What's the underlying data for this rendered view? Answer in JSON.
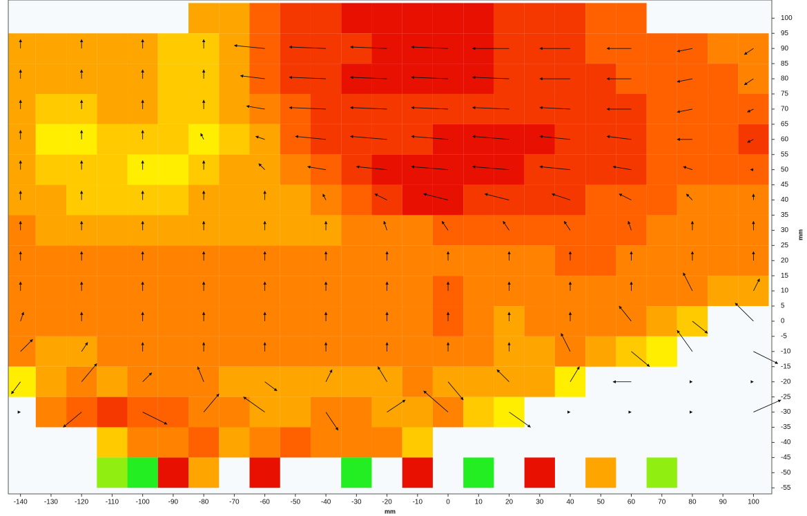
{
  "chart_data": {
    "type": "heatmap",
    "xlabel": "mm",
    "ylabel": "mm",
    "xlim": [
      -144,
      106
    ],
    "ylim": [
      -57,
      106
    ],
    "xticks": [
      -140,
      -130,
      -120,
      -110,
      -100,
      -90,
      -80,
      -70,
      -60,
      -50,
      -40,
      -30,
      -20,
      -10,
      0,
      10,
      20,
      30,
      40,
      50,
      60,
      70,
      80,
      90,
      100
    ],
    "yticks": [
      -55,
      -50,
      -45,
      -40,
      -35,
      -30,
      -25,
      -20,
      -15,
      -10,
      -5,
      0,
      5,
      10,
      15,
      20,
      25,
      30,
      35,
      40,
      45,
      50,
      55,
      60,
      65,
      70,
      75,
      80,
      85,
      90,
      95,
      100
    ],
    "colorscale": [
      "#22ee22",
      "#ffee00",
      "#ffa500",
      "#ff6000",
      "#e81000"
    ],
    "x": [
      -140,
      -130,
      -120,
      -110,
      -100,
      -90,
      -80,
      -70,
      -60,
      -50,
      -40,
      -30,
      -20,
      -10,
      0,
      10,
      20,
      30,
      40,
      50,
      60,
      70,
      80,
      90,
      100
    ],
    "y": [
      100,
      90,
      80,
      70,
      60,
      50,
      40,
      30,
      20,
      10,
      0,
      -10,
      -20,
      -30,
      -40,
      -50
    ],
    "values": [
      [
        null,
        null,
        null,
        null,
        null,
        null,
        5,
        5,
        7,
        8,
        8,
        9,
        9,
        9,
        9,
        9,
        8,
        8,
        8,
        7,
        7,
        null,
        null,
        null,
        null
      ],
      [
        5,
        5,
        5,
        5,
        5,
        4,
        4,
        5,
        7,
        8,
        8,
        8,
        9,
        9,
        9,
        9,
        8,
        8,
        8,
        7,
        7,
        7,
        7,
        6,
        6
      ],
      [
        5,
        5,
        5,
        5,
        5,
        4,
        4,
        5,
        7,
        8,
        8,
        9,
        9,
        9,
        9,
        9,
        8,
        8,
        8,
        8,
        7,
        7,
        7,
        7,
        6
      ],
      [
        5,
        4,
        4,
        5,
        5,
        4,
        4,
        5,
        6,
        7,
        8,
        8,
        8,
        8,
        8,
        8,
        8,
        8,
        8,
        8,
        8,
        7,
        7,
        7,
        7
      ],
      [
        5,
        3,
        3,
        4,
        4,
        4,
        3,
        4,
        5,
        7,
        8,
        8,
        8,
        8,
        9,
        9,
        9,
        9,
        8,
        8,
        8,
        7,
        7,
        7,
        8
      ],
      [
        5,
        4,
        4,
        4,
        3,
        3,
        4,
        5,
        5,
        6,
        7,
        8,
        9,
        9,
        9,
        9,
        9,
        8,
        8,
        8,
        8,
        7,
        7,
        7,
        7
      ],
      [
        5,
        5,
        4,
        4,
        4,
        4,
        5,
        5,
        5,
        5,
        6,
        7,
        8,
        9,
        9,
        8,
        8,
        8,
        8,
        7,
        7,
        7,
        6,
        6,
        6
      ],
      [
        6,
        5,
        5,
        5,
        5,
        5,
        5,
        5,
        5,
        5,
        5,
        6,
        6,
        6,
        7,
        7,
        7,
        7,
        7,
        7,
        7,
        6,
        6,
        6,
        6
      ],
      [
        6,
        6,
        6,
        6,
        6,
        6,
        6,
        6,
        6,
        6,
        6,
        6,
        6,
        6,
        6,
        6,
        6,
        6,
        7,
        7,
        6,
        6,
        6,
        6,
        6
      ],
      [
        6,
        6,
        6,
        6,
        6,
        6,
        6,
        6,
        6,
        6,
        6,
        6,
        6,
        6,
        7,
        6,
        6,
        6,
        6,
        6,
        6,
        6,
        6,
        5,
        5
      ],
      [
        6,
        6,
        6,
        6,
        6,
        6,
        6,
        6,
        6,
        6,
        6,
        6,
        6,
        6,
        7,
        6,
        5,
        6,
        6,
        6,
        6,
        5,
        4,
        null,
        null
      ],
      [
        6,
        5,
        5,
        6,
        6,
        6,
        6,
        6,
        6,
        6,
        6,
        6,
        6,
        6,
        6,
        6,
        5,
        5,
        6,
        5,
        4,
        3,
        null,
        null,
        null
      ],
      [
        3,
        5,
        6,
        5,
        6,
        6,
        6,
        5,
        5,
        5,
        5,
        5,
        5,
        6,
        5,
        5,
        5,
        5,
        3,
        null,
        null,
        null,
        null,
        null,
        null
      ],
      [
        null,
        6,
        7,
        8,
        7,
        7,
        6,
        6,
        5,
        5,
        6,
        6,
        5,
        5,
        6,
        4,
        3,
        null,
        null,
        null,
        null,
        null,
        null,
        null,
        null
      ],
      [
        null,
        null,
        null,
        4,
        6,
        6,
        7,
        5,
        6,
        7,
        6,
        6,
        6,
        4,
        null,
        null,
        null,
        null,
        null,
        null,
        null,
        null,
        null,
        null,
        null
      ],
      [
        null,
        null,
        null,
        2,
        1,
        9,
        5,
        null,
        9,
        null,
        null,
        1,
        null,
        9,
        null,
        1,
        null,
        9,
        null,
        5,
        null,
        2,
        null,
        null,
        null
      ]
    ],
    "vectors": {
      "color": "#111111",
      "x": [
        -140,
        -120,
        -100,
        -80,
        -60,
        -40,
        -20,
        0,
        20,
        40,
        60,
        80,
        100
      ],
      "y": [
        90,
        80,
        70,
        60,
        50,
        40,
        30,
        20,
        10,
        0,
        -10,
        -20,
        -30
      ],
      "u": [
        [
          0,
          0,
          0,
          0,
          -10,
          -12,
          -12,
          -12,
          -12,
          -10,
          -8,
          -5,
          -3
        ],
        [
          0,
          0,
          0,
          0,
          -8,
          -12,
          -12,
          -12,
          -12,
          -10,
          -8,
          -5,
          -3
        ],
        [
          0,
          0,
          0,
          0,
          -6,
          -12,
          -12,
          -12,
          -12,
          -10,
          -8,
          -5,
          -2
        ],
        [
          0,
          0,
          0,
          -1,
          -3,
          -10,
          -12,
          -12,
          -12,
          -10,
          -8,
          -5,
          -2
        ],
        [
          0,
          0,
          0,
          0,
          -2,
          -6,
          -10,
          -12,
          -12,
          -10,
          -6,
          -3,
          -1
        ],
        [
          0,
          0,
          0,
          0,
          0,
          -1,
          -4,
          -8,
          -8,
          -6,
          -4,
          -2,
          0
        ],
        [
          0,
          0,
          0,
          0,
          0,
          0,
          -1,
          -2,
          -2,
          -2,
          -1,
          0,
          0
        ],
        [
          0,
          0,
          0,
          0,
          0,
          0,
          0,
          0,
          0,
          0,
          0,
          0,
          0
        ],
        [
          0,
          0,
          0,
          0,
          0,
          0,
          0,
          0,
          0,
          0,
          0,
          -3,
          2
        ],
        [
          1,
          0,
          0,
          0,
          0,
          0,
          0,
          0,
          0,
          0,
          -4,
          5,
          -6
        ],
        [
          4,
          2,
          0,
          0,
          0,
          0,
          0,
          0,
          0,
          -3,
          6,
          -5,
          8
        ],
        [
          -3,
          5,
          3,
          -2,
          4,
          2,
          -3,
          5,
          -4,
          3,
          -6,
          0,
          0
        ],
        [
          0,
          -6,
          8,
          5,
          -7,
          4,
          6,
          -8,
          7,
          0,
          0,
          0,
          9
        ]
      ],
      "v": [
        [
          3,
          3,
          3,
          3,
          1,
          0.5,
          0.5,
          0.5,
          0,
          0,
          0,
          -1,
          -2
        ],
        [
          3,
          3,
          3,
          3,
          1,
          0.5,
          0.5,
          0.5,
          0.5,
          0,
          0,
          -1,
          -2
        ],
        [
          3,
          3,
          3,
          3,
          1,
          0.5,
          0.5,
          0.5,
          0.5,
          0.5,
          0,
          -1,
          -1
        ],
        [
          3,
          3,
          3,
          2,
          1,
          1,
          1,
          1,
          1,
          1,
          1,
          0,
          -1
        ],
        [
          3,
          3,
          3,
          3,
          2,
          1,
          1,
          1,
          1,
          1,
          1,
          1,
          0
        ],
        [
          3,
          3,
          3,
          3,
          3,
          2,
          2,
          2,
          2,
          2,
          2,
          2,
          2
        ],
        [
          3,
          3,
          3,
          3,
          3,
          3,
          3,
          3,
          3,
          3,
          3,
          3,
          3
        ],
        [
          3,
          3,
          3,
          3,
          3,
          3,
          3,
          3,
          3,
          3,
          3,
          3,
          3
        ],
        [
          3,
          3,
          3,
          3,
          3,
          3,
          3,
          3,
          3,
          3,
          3,
          6,
          4
        ],
        [
          3,
          3,
          3,
          3,
          3,
          3,
          3,
          3,
          3,
          3,
          5,
          -4,
          6
        ],
        [
          4,
          3,
          3,
          3,
          3,
          3,
          3,
          3,
          3,
          6,
          -5,
          7,
          -4
        ],
        [
          -4,
          6,
          3,
          5,
          -3,
          4,
          5,
          -6,
          4,
          5,
          0,
          0,
          0
        ],
        [
          0,
          -5,
          -4,
          6,
          5,
          -6,
          4,
          7,
          -5,
          0,
          0,
          0,
          4
        ]
      ]
    }
  }
}
